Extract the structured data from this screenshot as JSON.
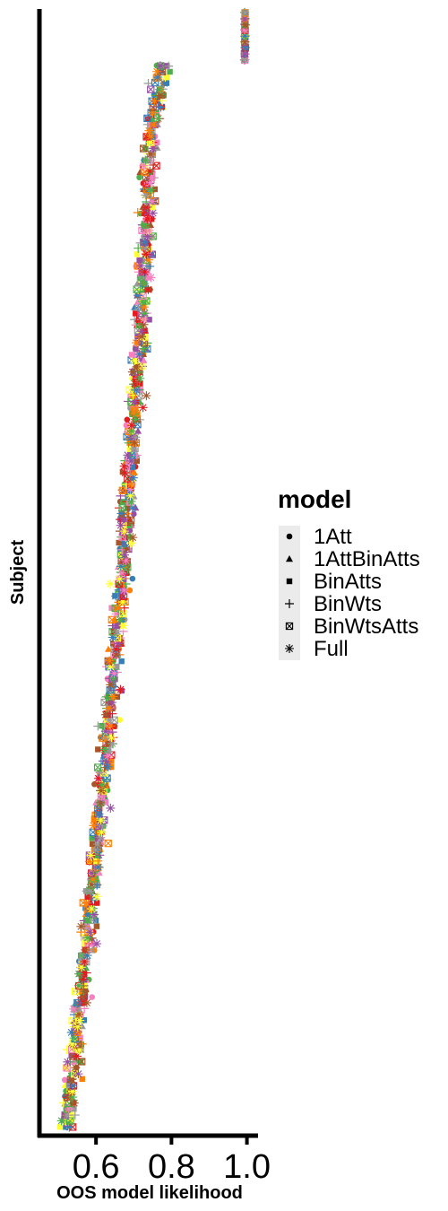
{
  "chart_data": {
    "type": "scatter",
    "xlabel": "OOS model likelihood",
    "ylabel": "Subject",
    "xlim": [
      0.45,
      1.02
    ],
    "x_ticks": [
      0.6,
      0.8,
      1.0
    ],
    "x_tick_labels": [
      "0.6",
      "0.8",
      "1.0"
    ],
    "y_ticks_shown": false,
    "grid": false,
    "legend": {
      "title": "model",
      "placement": "right",
      "entries": [
        {
          "label": "1Att",
          "shape": "filled-circle-icon"
        },
        {
          "label": "1AttBinAtts",
          "shape": "filled-triangle-icon"
        },
        {
          "label": "BinAtts",
          "shape": "filled-square-icon"
        },
        {
          "label": "BinWts",
          "shape": "plus-icon"
        },
        {
          "label": "BinWtsAtts",
          "shape": "boxed-x-icon"
        },
        {
          "label": "Full",
          "shape": "asterisk-icon"
        }
      ]
    },
    "subject_count": 190,
    "subjects_sorted_by_likelihood": true,
    "mean_likelihood_range": [
      0.52,
      1.0
    ],
    "colors": [
      "#e41a1c",
      "#377eb8",
      "#4daf4a",
      "#984ea3",
      "#ff7f00",
      "#ffff33",
      "#a65628",
      "#f781bf",
      "#999999"
    ]
  }
}
